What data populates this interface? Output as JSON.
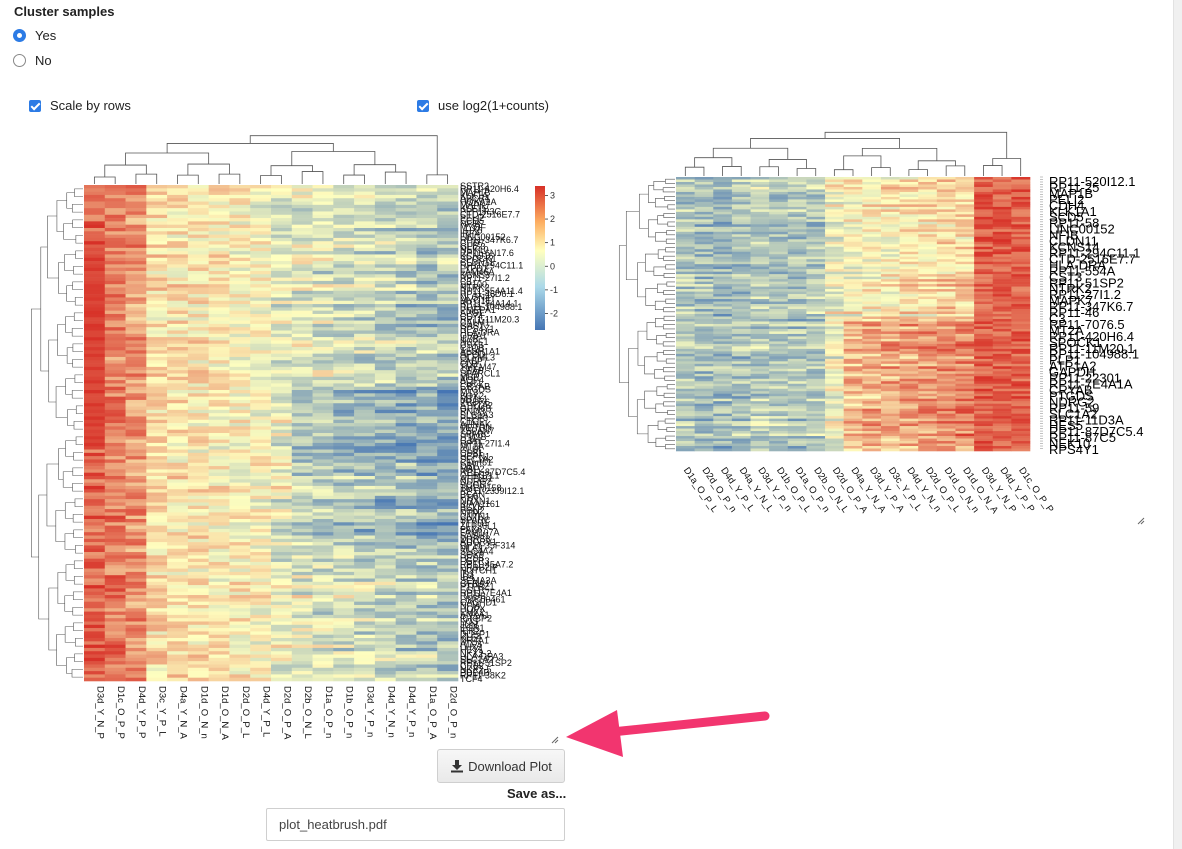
{
  "cluster": {
    "title": "Cluster samples",
    "options": [
      {
        "label": "Yes",
        "selected": true
      },
      {
        "label": "No",
        "selected": false
      }
    ]
  },
  "options": {
    "scale_label": "Scale by rows",
    "scale_checked": true,
    "log_label": "use log2(1+counts)",
    "log_checked": true
  },
  "heatmap_left": {
    "samples": [
      "D3d_Y_N_P",
      "D1c_O_P_P",
      "D4d_Y_P_P",
      "D3c_Y_P_L",
      "D4a_Y_N_A",
      "D1d_O_N_n",
      "D1d_O_N_A",
      "D2d_O_P_L",
      "D4d_Y_P_L",
      "D2d_O_P_A",
      "D2b_O_N_L",
      "D1a_O_P_n",
      "D1b_O_P_n",
      "D3d_Y_P_n",
      "D4d_Y_N_n",
      "D4d_Y_P_n",
      "D1a_O_P_A",
      "D2d_O_P_n"
    ],
    "genes": [
      "SSTR2",
      "RP11-420H6.4",
      "MAP1B",
      "KLK1A",
      "ABCB4",
      "HOXA2A",
      "MAPK7",
      "KLF15",
      "PPP1R3C",
      "CTD-2516E7.7",
      "PELI2",
      "SCD5",
      "NFIB",
      "MYOF",
      "LHX5",
      "IRF4",
      "LINC00152",
      "RP11-347K6.7",
      "CHD7",
      "GLIS3",
      "NEK10",
      "RP11-6N17.6",
      "KCNJ16",
      "SPOCK1",
      "CLDN11",
      "RP11-294C11.1",
      "LYPD1",
      "FAM46A",
      "KCNS3",
      "RP11-27I1.2",
      "C3",
      "SP100",
      "NTRK2",
      "RP11-554A11.4",
      "RP11-46D6.1",
      "NLGN4Y",
      "MYO1E",
      "RP11-34A14.1",
      "RP11-104988.1",
      "PMEPA1",
      "APOE",
      "CD74",
      "RP11-11M20.3",
      "CALM1",
      "GAS7",
      "RPS4Y1",
      "HLA-DRA",
      "GRIA1",
      "IL7R",
      "NR2F1",
      "CST3",
      "C1QB",
      "ALDH1A1",
      "APOD",
      "OLFML3",
      "FABP7",
      "CLU",
      "TMEM47",
      "GFAP",
      "SPARCL1",
      "MBP",
      "AQP4",
      "PLP1",
      "CRYAB",
      "PTGDS",
      "MT3",
      "SOX2",
      "MT1L1",
      "PRDX6",
      "ATP1A2",
      "GPM6B",
      "RND3",
      "SLC1A3",
      "PLPP3",
      "CTGF",
      "AHNAK",
      "METRN",
      "TSPAN7",
      "SPARC",
      "ITM2B",
      "GJA1",
      "RP11-27I1.4",
      "MT2A",
      "GLUL",
      "CD81",
      "HEPN1",
      "SLC1A2",
      "C1orf61",
      "DBI",
      "MAP2",
      "RP11-87D7C5.4",
      "GPR37L1",
      "ATP1B2",
      "NDRG2",
      "SCG5",
      "TMEM158",
      "RP11-23J9I12.1",
      "BCAN",
      "PTN",
      "NRXN1",
      "KIAA1161",
      "BCL6",
      "PON2",
      "NTM",
      "CNTN1",
      "SPARC",
      "TTYH1",
      "ZFP36L1",
      "PAX6",
      "FAM107A",
      "SASH1",
      "DHRS3",
      "ADGRV1",
      "RP11-35F314",
      "MLC1",
      "SLC4A4",
      "SOX9",
      "HES5",
      "FGFR3",
      "RP11-45A7.2",
      "ERBB2IP",
      "NOTCH1",
      "ID3",
      "ID4",
      "SEMA3A",
      "GFRA1",
      "PTPRZ1",
      "EGFR",
      "RP11-7E4A1",
      "RHOB",
      "LINC00461",
      "CACHD1",
      "NFIA",
      "HOPX",
      "EMX2",
      "ANXA1",
      "IGFBP2",
      "FOS",
      "JUN",
      "EGR1",
      "IER2",
      "DUSP1",
      "KLF4",
      "NR4A1",
      "ATF3",
      "LHX2",
      "HEY1",
      "NKX2-2",
      "HLA-DPA3",
      "SLC1A2",
      "RP11-51SP2",
      "CRB2",
      "NKX2-5",
      "PDE4B",
      "RP11-38K2",
      "TCF4"
    ],
    "scale": {
      "ticks": [
        3,
        2,
        1,
        0,
        -1,
        -2
      ]
    }
  },
  "heatmap_right": {
    "samples": [
      "D1a_O_P_L",
      "D2d_O_P_n",
      "D4d_Y_P_L",
      "D4a_Y_N_L",
      "D3d_Y_P_n",
      "D1b_O_P_L",
      "D1a_O_P_n",
      "D2b_O_N_L",
      "D2d_O_P_A",
      "D4a_Y_N_A",
      "D3d_Y_P_A",
      "D3c_Y_P_L",
      "D4d_Y_N_n",
      "D2d_O_P_L",
      "D1d_O_N_n",
      "D1d_O_N_A",
      "D3d_Y_N_P",
      "D4d_Y_P_P",
      "D1c_O_P_P"
    ],
    "genes": [
      "RP11-520I12.1",
      "RP11-25",
      "MAP1B",
      "PELI2",
      "CDH4",
      "KLK1A1",
      "SCD5",
      "RP11-58",
      "LINC00152",
      "NFIB",
      "CLDN11",
      "KCNS14",
      "RP11-294C11.1",
      "CTD-2516E7.7",
      "HLA-DRA",
      "RP11-554A",
      "CST3",
      "RP11-51SP2",
      "NTRK2",
      "RP11-27I1.2",
      "MAPK7",
      "RP11-347K6.7",
      "RP11-46",
      "C3",
      "RP11-7076.5",
      "MT2A",
      "RP11-420H6.4",
      "SPOCK1",
      "RP11-11M20.1",
      "RP11-104988.1",
      "PLP1",
      "ATP1A2",
      "GAPDH",
      "RP11-22301",
      "RP11-7E4A1A",
      "CRYAB",
      "PTGDS",
      "NDRG2",
      "RP11-59",
      "SLC1A2",
      "RP11-11D3A",
      "HES5",
      "RP11-87D7C5.4",
      "RP11-87C5",
      "NEK10",
      "RPS4Y1"
    ]
  },
  "download": {
    "label": "Download Plot",
    "icon": "download-icon"
  },
  "save_as": {
    "label": "Save as...",
    "value": "plot_heatbrush.pdf"
  },
  "colors": {
    "accent": "#2c7be5",
    "high": "#d73027",
    "mid": "#ffffbf",
    "low": "#4575b4"
  }
}
